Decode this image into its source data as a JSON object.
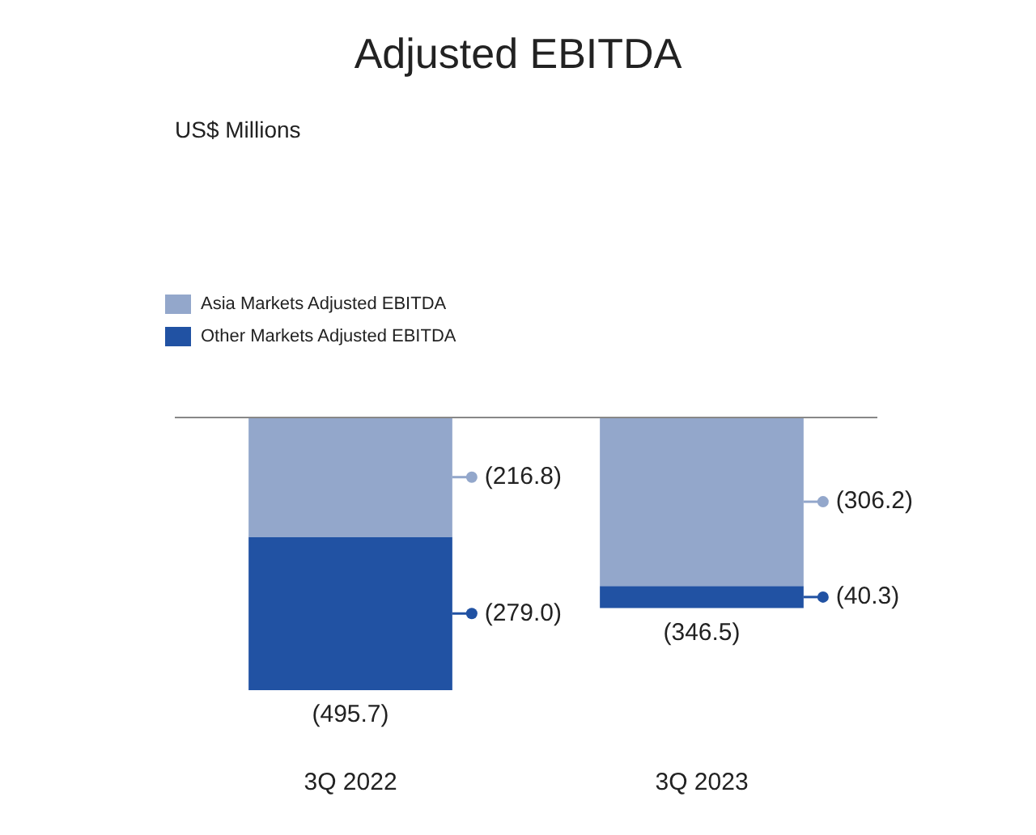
{
  "chart_data": {
    "type": "bar",
    "title": "Adjusted EBITDA",
    "annotations": [
      "US$ Millions"
    ],
    "categories": [
      "3Q 2022",
      "3Q 2023"
    ],
    "stacked": true,
    "legend": "top left",
    "grid": false,
    "tick_labels": "x",
    "series": [
      {
        "name": "Asia Markets Adjusted EBITDA",
        "color": "#93a7cb",
        "values": [
          -216.8,
          -306.2
        ],
        "value_labels": [
          "(216.8)",
          "(306.2)"
        ]
      },
      {
        "name": "Other Markets Adjusted EBITDA",
        "color": "#2152a3",
        "values": [
          -279.0,
          -40.3
        ],
        "value_labels": [
          "(279.0)",
          "(40.3)"
        ]
      }
    ],
    "totals": [
      "(495.7)",
      "(346.5)"
    ]
  }
}
